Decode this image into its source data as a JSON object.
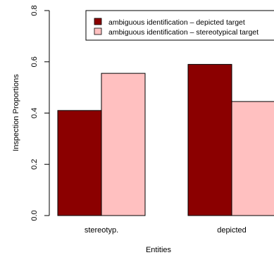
{
  "chart_data": {
    "type": "bar",
    "categories": [
      "stereotyp.",
      "depicted"
    ],
    "series": [
      {
        "name": "ambiguous identification – depicted target",
        "values": [
          0.41,
          0.59
        ],
        "color": "#8b0000"
      },
      {
        "name": "ambiguous identification – stereotypical target",
        "values": [
          0.555,
          0.445
        ],
        "color": "#ffc0c0"
      }
    ],
    "xlabel": "Entities",
    "ylabel": "Inspection Proportions",
    "ylim": [
      0,
      0.8
    ],
    "yticks": [
      "0.0",
      "0.2",
      "0.4",
      "0.6",
      "0.8"
    ],
    "grid": false,
    "legend_position": "top-right"
  }
}
